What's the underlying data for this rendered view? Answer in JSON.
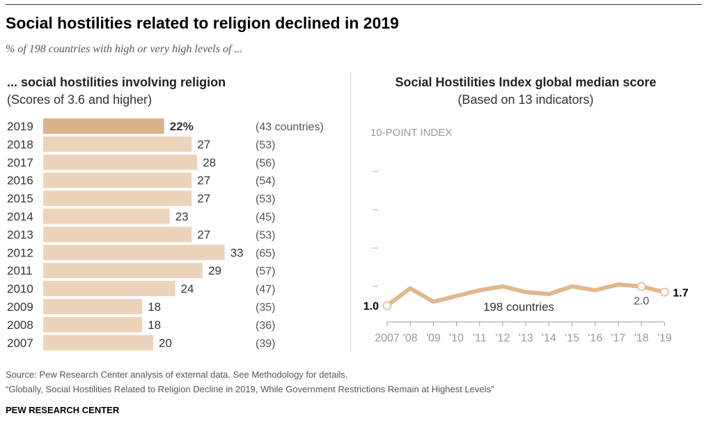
{
  "title": "Social hostilities related to religion declined in 2019",
  "subtitle": "% of 198 countries with high or very high levels of ...",
  "source": "Source: Pew Research Center analysis of external data. See Methodology for details.",
  "report": "“Globally, Social Hostilities Related to Religion Decline in 2019, While Government Restrictions Remain at Highest Levels”",
  "brand": "PEW RESEARCH CENTER",
  "colors": {
    "bar": "#ecd4bb",
    "bar_highlight": "#dcb28a",
    "line": "#e0b88c"
  },
  "chart_data": [
    {
      "type": "bar",
      "title": "... social hostilities involving religion",
      "subtitle": "(Scores of 3.6 and higher)",
      "categories": [
        "2019",
        "2018",
        "2017",
        "2016",
        "2015",
        "2014",
        "2013",
        "2012",
        "2011",
        "2010",
        "2009",
        "2008",
        "2007"
      ],
      "values": [
        22,
        27,
        28,
        27,
        27,
        23,
        27,
        33,
        29,
        24,
        18,
        18,
        20
      ],
      "value_labels": [
        "22%",
        "27",
        "28",
        "27",
        "27",
        "23",
        "27",
        "33",
        "29",
        "24",
        "18",
        "18",
        "20"
      ],
      "counts": [
        "(43 countries)",
        "(53)",
        "(56)",
        "(54)",
        "(53)",
        "(45)",
        "(53)",
        "(65)",
        "(57)",
        "(47)",
        "(35)",
        "(36)",
        "(39)"
      ]
    },
    {
      "type": "line",
      "title": "Social Hostilities Index global median score",
      "subtitle": "(Based on 13 indicators)",
      "ylabel": "10-POINT INDEX",
      "ylim": [
        0,
        10
      ],
      "x": [
        "2007",
        "'08",
        "'09",
        "'10",
        "'11",
        "'12",
        "'13",
        "'14",
        "'15",
        "'16",
        "'17",
        "'18",
        "'19"
      ],
      "series": [
        {
          "name": "198 countries",
          "values": [
            1.0,
            1.9,
            1.2,
            1.5,
            1.8,
            2.0,
            1.7,
            1.6,
            2.0,
            1.8,
            2.1,
            2.0,
            1.7
          ]
        }
      ],
      "annotations": {
        "first": "1.0",
        "2018": "2.0",
        "last": "1.7"
      }
    }
  ]
}
